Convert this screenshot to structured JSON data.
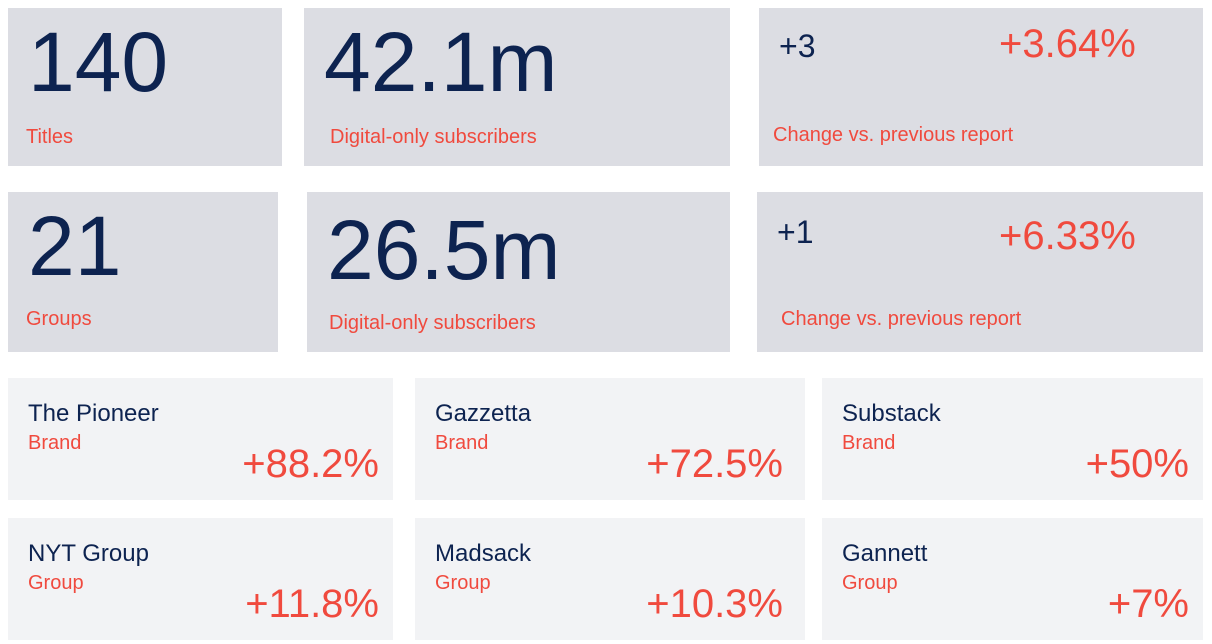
{
  "totals": [
    {
      "value": "140",
      "label": "Titles"
    },
    {
      "value": "42.1m",
      "label": "Digital-only subscribers"
    },
    {
      "count": "+3",
      "percent": "+3.64%",
      "label": "Change vs. previous report"
    },
    {
      "value": "21",
      "label": "Groups"
    },
    {
      "value": "26.5m",
      "label": "Digital-only subscribers"
    },
    {
      "count": "+1",
      "percent": "+6.33%",
      "label": "Change vs. previous report"
    }
  ],
  "growth": [
    {
      "name": "The Pioneer",
      "kind": "Brand",
      "change": "+88.2%"
    },
    {
      "name": "Gazzetta",
      "kind": "Brand",
      "change": "+72.5%"
    },
    {
      "name": "Substack",
      "kind": "Brand",
      "change": "+50%"
    },
    {
      "name": "NYT Group",
      "kind": "Group",
      "change": "+11.8%"
    },
    {
      "name": "Madsack",
      "kind": "Group",
      "change": "+10.3%"
    },
    {
      "name": "Gannett",
      "kind": "Group",
      "change": "+7%"
    }
  ]
}
